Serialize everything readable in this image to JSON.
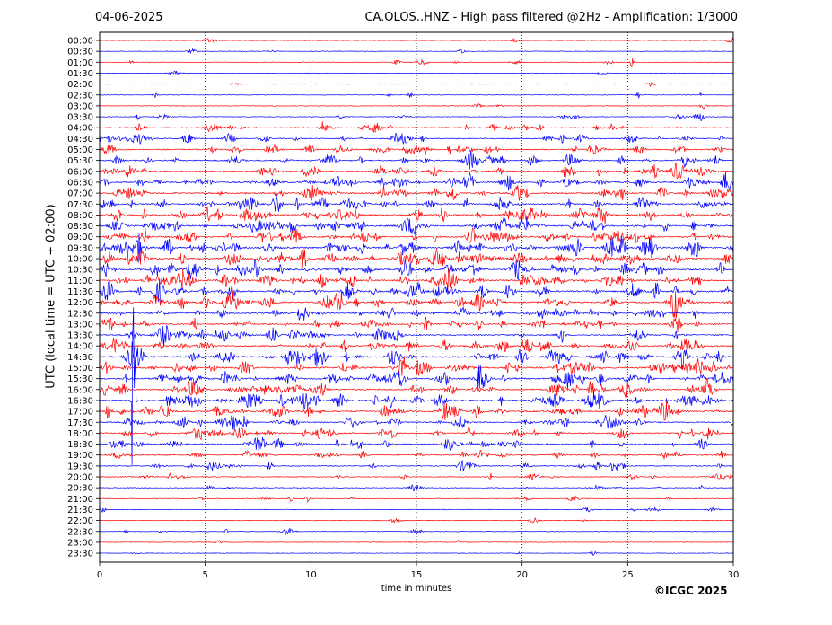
{
  "header": {
    "date": "04-06-2025",
    "title": "CA.OLOS..HNZ - High pass filtered @2Hz - Amplification: 1/3000"
  },
  "copyright": "©ICGC 2025",
  "chart_data": {
    "type": "line",
    "title": "CA.OLOS..HNZ - High pass filtered @2Hz - Amplification: 1/3000",
    "xlabel": "time in minutes",
    "ylabel": "UTC (local time = UTC + 02:00)",
    "xlim": [
      0,
      30
    ],
    "xticks": [
      0,
      5,
      10,
      15,
      20,
      25,
      30
    ],
    "vertical_gridlines": [
      5,
      10,
      15,
      20,
      25
    ],
    "grid": "vertical dotted",
    "rows": [
      "00:00",
      "00:30",
      "01:00",
      "01:30",
      "02:00",
      "02:30",
      "03:00",
      "03:30",
      "04:00",
      "04:30",
      "05:00",
      "05:30",
      "06:00",
      "06:30",
      "07:00",
      "07:30",
      "08:00",
      "08:30",
      "09:00",
      "09:30",
      "10:00",
      "10:30",
      "11:00",
      "11:30",
      "12:00",
      "12:30",
      "13:00",
      "13:30",
      "14:00",
      "14:30",
      "15:00",
      "15:30",
      "16:00",
      "16:30",
      "17:00",
      "17:30",
      "18:00",
      "18:30",
      "19:00",
      "19:30",
      "20:00",
      "20:30",
      "21:00",
      "21:30",
      "22:00",
      "22:30",
      "23:00",
      "23:30"
    ],
    "row_colors": [
      "#ff0000",
      "#0000ff"
    ],
    "activity_level": [
      0.05,
      0.05,
      0.1,
      0.03,
      0.03,
      0.08,
      0.08,
      0.15,
      0.35,
      0.45,
      0.5,
      0.55,
      0.6,
      0.65,
      0.7,
      0.75,
      0.8,
      0.75,
      0.75,
      0.85,
      0.85,
      0.85,
      0.8,
      0.8,
      0.75,
      0.65,
      0.6,
      0.6,
      0.7,
      0.75,
      0.8,
      0.8,
      0.75,
      0.75,
      0.7,
      0.6,
      0.55,
      0.55,
      0.4,
      0.35,
      0.2,
      0.15,
      0.15,
      0.1,
      0.05,
      0.1,
      0.05,
      0.05
    ],
    "events": [
      {
        "row": "01:00",
        "minute": 25.2,
        "amp": 0.5
      },
      {
        "row": "02:30",
        "minute": 25.5,
        "amp": 0.45
      },
      {
        "row": "03:30",
        "minute": 28.5,
        "amp": 0.7
      },
      {
        "row": "04:00",
        "minute": 17.4,
        "amp": 0.4
      },
      {
        "row": "04:30",
        "minute": 15.3,
        "amp": 0.4
      },
      {
        "row": "07:30",
        "minute": 22.2,
        "amp": 0.8
      },
      {
        "row": "08:00",
        "minute": 2.1,
        "amp": 0.6
      },
      {
        "row": "11:00",
        "minute": 0.9,
        "amp": 0.45
      },
      {
        "row": "16:30",
        "minute": 1.6,
        "amp": 14.5
      },
      {
        "row": "17:30",
        "minute": 30.0,
        "amp": 0.7
      },
      {
        "row": "20:00",
        "minute": 18.5,
        "amp": 0.35
      },
      {
        "row": "22:30",
        "minute": 6.0,
        "amp": 0.35
      }
    ]
  },
  "colors": {
    "trace_red": "#ff0000",
    "trace_blue": "#0000ff"
  }
}
